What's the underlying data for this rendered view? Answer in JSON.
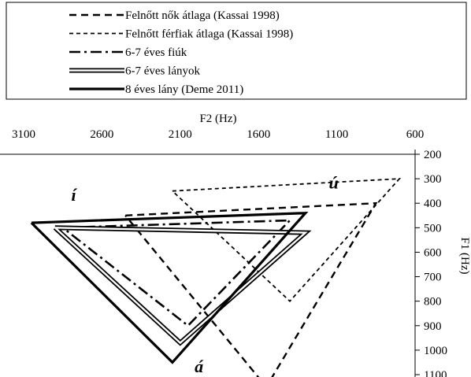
{
  "chart_data": {
    "type": "line",
    "title": "",
    "xlabel": "F2 (Hz)",
    "ylabel": "F1 (Hz)",
    "x_axis_position": "top",
    "y_axis_position": "right",
    "x_reversed": true,
    "y_reversed": true,
    "xlim": [
      3100,
      600
    ],
    "ylim": [
      200,
      1100
    ],
    "x_ticks": [
      "3100",
      "2600",
      "2100",
      "1600",
      "1100",
      "600"
    ],
    "y_ticks": [
      "200",
      "300",
      "400",
      "500",
      "600",
      "700",
      "800",
      "900",
      "1000",
      "1100"
    ],
    "legend_position": "top",
    "grid": false,
    "series": [
      {
        "name": "Felnőtt nők átlaga (Kassai 1998)",
        "style": "dashed",
        "points": [
          [
            2450,
            450
          ],
          [
            850,
            400
          ],
          [
            1550,
            1150
          ],
          [
            2450,
            450
          ]
        ]
      },
      {
        "name": "Felnőtt férfiak átlaga (Kassai 1998)",
        "style": "short-dashed",
        "points": [
          [
            2150,
            350
          ],
          [
            700,
            300
          ],
          [
            1400,
            800
          ],
          [
            2150,
            350
          ]
        ]
      },
      {
        "name": "6-7 éves fiúk",
        "style": "dash-dot",
        "points": [
          [
            2850,
            500
          ],
          [
            1400,
            470
          ],
          [
            2050,
            900
          ],
          [
            2850,
            500
          ]
        ]
      },
      {
        "name": "6-7 éves lányok",
        "style": "double",
        "points": [
          [
            2900,
            500
          ],
          [
            1300,
            520
          ],
          [
            2100,
            970
          ],
          [
            2900,
            500
          ]
        ]
      },
      {
        "name": "8 éves lány (Deme 2011)",
        "style": "solid",
        "points": [
          [
            3050,
            480
          ],
          [
            1300,
            440
          ],
          [
            2150,
            1050
          ],
          [
            3050,
            480
          ]
        ]
      }
    ],
    "annotations": [
      {
        "text": "í",
        "x": 2780,
        "y": 390
      },
      {
        "text": "ú",
        "x": 1120,
        "y": 340
      },
      {
        "text": "á",
        "x": 1980,
        "y": 1090
      }
    ]
  }
}
